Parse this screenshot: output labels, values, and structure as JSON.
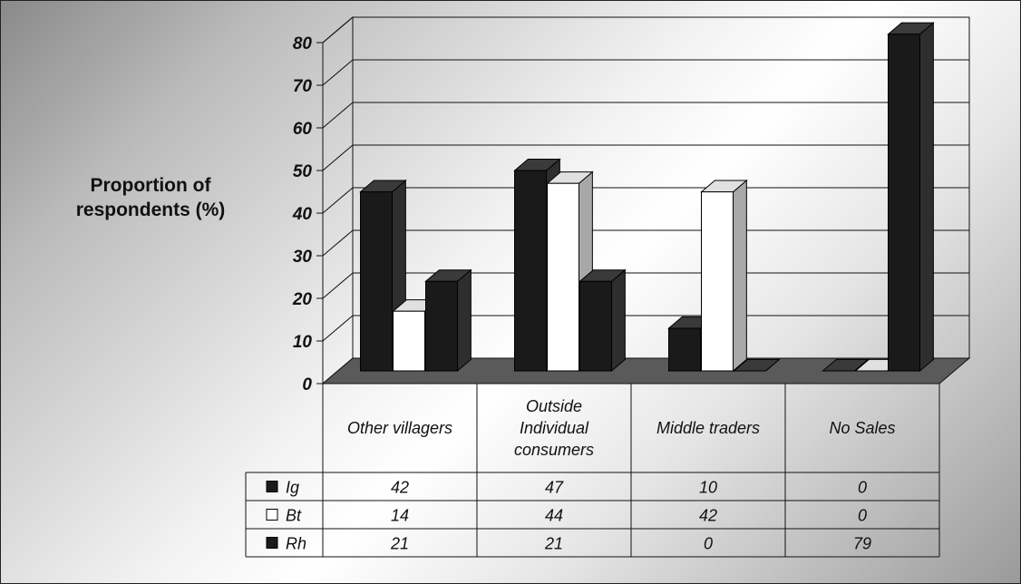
{
  "chart_data": {
    "type": "bar",
    "ylabel": "Proportion of respondents (%)",
    "ylabel_lines": [
      "Proportion of",
      "respondents (%)"
    ],
    "ylim": [
      0,
      80
    ],
    "yticks": [
      0,
      10,
      20,
      30,
      40,
      50,
      60,
      70,
      80
    ],
    "grid": true,
    "categories": [
      "Other villagers",
      "Outside Individual consumers",
      "Middle traders",
      "No Sales"
    ],
    "category_lines": [
      [
        "Other villagers"
      ],
      [
        "Outside",
        "Individual",
        "consumers"
      ],
      [
        "Middle traders"
      ],
      [
        "No Sales"
      ]
    ],
    "series": [
      {
        "name": "Ig",
        "values": [
          42,
          47,
          10,
          0
        ],
        "color": "#1a1a1a"
      },
      {
        "name": "Bt",
        "values": [
          14,
          44,
          42,
          0
        ],
        "color": "#ffffff"
      },
      {
        "name": "Rh",
        "values": [
          21,
          21,
          0,
          79
        ],
        "color": "#1a1a1a"
      }
    ],
    "table_values": [
      [
        "42",
        "47",
        "10",
        "0"
      ],
      [
        "14",
        "44",
        "42",
        "0"
      ],
      [
        "21",
        "21",
        "0",
        "79"
      ]
    ],
    "legend": "data-table-bottom"
  }
}
